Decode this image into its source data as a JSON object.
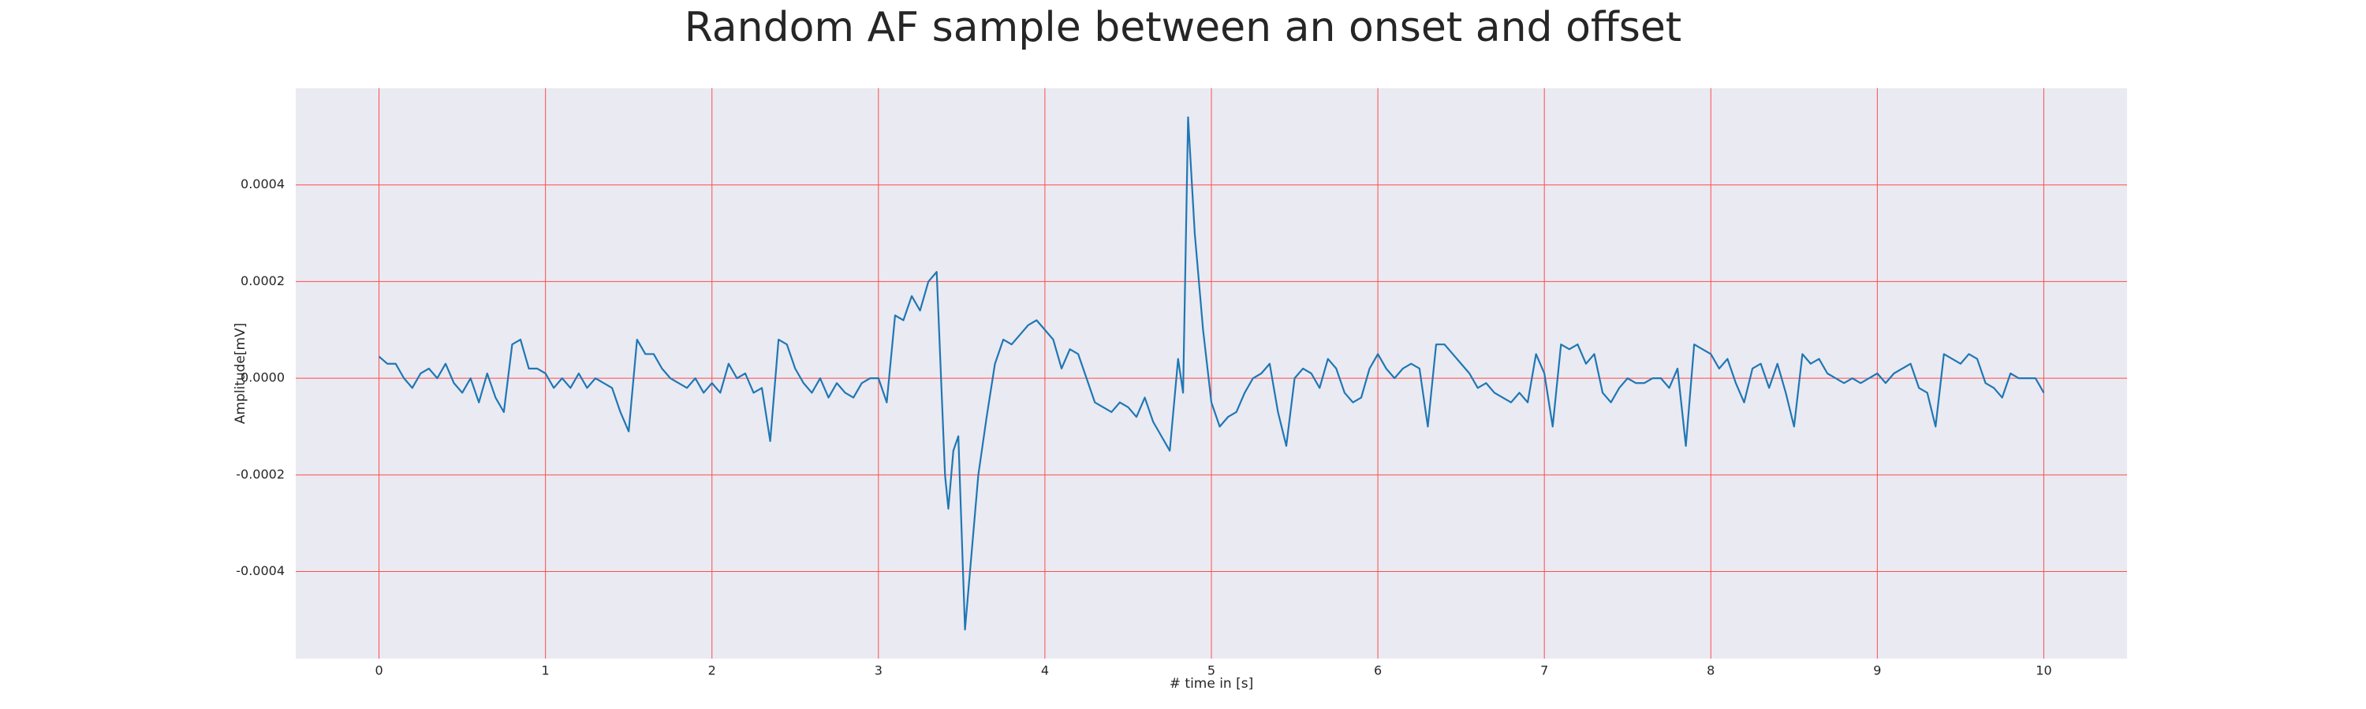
{
  "chart_data": {
    "type": "line",
    "title": "Random AF sample between an onset and offset",
    "xlabel": "# time in [s]",
    "ylabel": "Amplitude[mV]",
    "xlim": [
      -0.5,
      10.5
    ],
    "ylim": [
      -0.00058,
      0.0006
    ],
    "xticks": [
      0,
      1,
      2,
      3,
      4,
      5,
      6,
      7,
      8,
      9,
      10
    ],
    "yticks": [
      -0.0004,
      -0.0002,
      {
        "value": 0,
        "label": "0.0000"
      },
      0.0002,
      0.0004
    ],
    "grid": true,
    "grid_color": "#ff4d4d",
    "background": "#eaeaf2",
    "series": [
      {
        "color": "#1f77b4",
        "x": [
          0,
          0.05,
          0.1,
          0.15,
          0.2,
          0.25,
          0.3,
          0.35,
          0.4,
          0.45,
          0.5,
          0.55,
          0.6,
          0.65,
          0.7,
          0.75,
          0.8,
          0.85,
          0.9,
          0.95,
          1,
          1.05,
          1.1,
          1.15,
          1.2,
          1.25,
          1.3,
          1.35,
          1.4,
          1.45,
          1.5,
          1.55,
          1.6,
          1.65,
          1.7,
          1.75,
          1.8,
          1.85,
          1.9,
          1.95,
          2,
          2.05,
          2.1,
          2.15,
          2.2,
          2.25,
          2.3,
          2.35,
          2.4,
          2.45,
          2.5,
          2.55,
          2.6,
          2.65,
          2.7,
          2.75,
          2.8,
          2.85,
          2.9,
          2.95,
          3,
          3.05,
          3.1,
          3.15,
          3.2,
          3.25,
          3.3,
          3.35,
          3.4,
          3.42,
          3.45,
          3.48,
          3.52,
          3.55,
          3.6,
          3.65,
          3.7,
          3.75,
          3.8,
          3.85,
          3.9,
          3.95,
          4,
          4.05,
          4.1,
          4.15,
          4.2,
          4.25,
          4.3,
          4.35,
          4.4,
          4.45,
          4.5,
          4.55,
          4.6,
          4.65,
          4.7,
          4.75,
          4.8,
          4.83,
          4.86,
          4.9,
          4.95,
          5,
          5.05,
          5.1,
          5.15,
          5.2,
          5.25,
          5.3,
          5.35,
          5.4,
          5.45,
          5.5,
          5.55,
          5.6,
          5.65,
          5.7,
          5.75,
          5.8,
          5.85,
          5.9,
          5.95,
          6,
          6.05,
          6.1,
          6.15,
          6.2,
          6.25,
          6.3,
          6.35,
          6.4,
          6.45,
          6.5,
          6.55,
          6.6,
          6.65,
          6.7,
          6.75,
          6.8,
          6.85,
          6.9,
          6.95,
          7,
          7.05,
          7.1,
          7.15,
          7.2,
          7.25,
          7.3,
          7.35,
          7.4,
          7.45,
          7.5,
          7.55,
          7.6,
          7.65,
          7.7,
          7.75,
          7.8,
          7.85,
          7.9,
          7.95,
          8,
          8.05,
          8.1,
          8.15,
          8.2,
          8.25,
          8.3,
          8.35,
          8.4,
          8.45,
          8.5,
          8.55,
          8.6,
          8.65,
          8.7,
          8.75,
          8.8,
          8.85,
          8.9,
          8.95,
          9,
          9.05,
          9.1,
          9.15,
          9.2,
          9.25,
          9.3,
          9.35,
          9.4,
          9.45,
          9.5,
          9.55,
          9.6,
          9.65,
          9.7,
          9.75,
          9.8,
          9.85,
          9.9,
          9.95,
          10
        ],
        "values": [
          4.5e-05,
          3e-05,
          3e-05,
          0,
          -2e-05,
          1e-05,
          2e-05,
          0,
          3e-05,
          -1e-05,
          -3e-05,
          0,
          -5e-05,
          1e-05,
          -4e-05,
          -7e-05,
          7e-05,
          8e-05,
          2e-05,
          2e-05,
          1e-05,
          -2e-05,
          0,
          -2e-05,
          1e-05,
          -2e-05,
          0,
          -1e-05,
          -2e-05,
          -7e-05,
          -0.00011,
          8e-05,
          5e-05,
          5e-05,
          2e-05,
          0,
          -1e-05,
          -2e-05,
          0,
          -3e-05,
          -1e-05,
          -3e-05,
          3e-05,
          0,
          1e-05,
          -3e-05,
          -2e-05,
          -0.00013,
          8e-05,
          7e-05,
          2e-05,
          -1e-05,
          -3e-05,
          0,
          -4e-05,
          -1e-05,
          -3e-05,
          -4e-05,
          -1e-05,
          0,
          0,
          -5e-05,
          0.00013,
          0.00012,
          0.00017,
          0.00014,
          0.0002,
          0.00022,
          -0.0002,
          -0.00027,
          -0.00015,
          -0.00012,
          -0.00052,
          -0.0004,
          -0.0002,
          -8e-05,
          3e-05,
          8e-05,
          7e-05,
          9e-05,
          0.00011,
          0.00012,
          0.0001,
          8e-05,
          2e-05,
          6e-05,
          5e-05,
          0,
          -5e-05,
          -6e-05,
          -7e-05,
          -5e-05,
          -6e-05,
          -8e-05,
          -4e-05,
          -9e-05,
          -0.00012,
          -0.00015,
          4e-05,
          -3e-05,
          0.00054,
          0.0003,
          0.0001,
          -5e-05,
          -0.0001,
          -8e-05,
          -7e-05,
          -3e-05,
          0,
          1e-05,
          3e-05,
          -7e-05,
          -0.00014,
          0,
          2e-05,
          1e-05,
          -2e-05,
          4e-05,
          2e-05,
          -3e-05,
          -5e-05,
          -4e-05,
          2e-05,
          5e-05,
          2e-05,
          0,
          2e-05,
          3e-05,
          2e-05,
          -0.0001,
          7e-05,
          7e-05,
          5e-05,
          3e-05,
          1e-05,
          -2e-05,
          -1e-05,
          -3e-05,
          -4e-05,
          -5e-05,
          -3e-05,
          -5e-05,
          5e-05,
          1e-05,
          -0.0001,
          7e-05,
          6e-05,
          7e-05,
          3e-05,
          5e-05,
          -3e-05,
          -5e-05,
          -2e-05,
          0,
          -1e-05,
          -1e-05,
          0,
          0,
          -2e-05,
          2e-05,
          -0.00014,
          7e-05,
          6e-05,
          5e-05,
          2e-05,
          4e-05,
          -1e-05,
          -5e-05,
          2e-05,
          3e-05,
          -2e-05,
          3e-05,
          -3e-05,
          -0.0001,
          5e-05,
          3e-05,
          4e-05,
          1e-05,
          0,
          -1e-05,
          0,
          -1e-05,
          0,
          1e-05,
          -1e-05,
          1e-05,
          2e-05,
          3e-05,
          -2e-05,
          -3e-05,
          -0.0001,
          5e-05,
          4e-05,
          3e-05,
          5e-05,
          4e-05,
          -1e-05,
          -2e-05,
          -4e-05,
          1e-05,
          0,
          0,
          0,
          -3e-05
        ]
      }
    ]
  }
}
